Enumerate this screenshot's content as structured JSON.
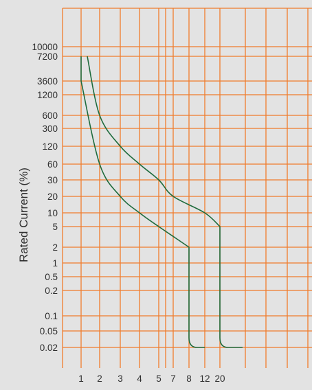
{
  "chart_data": {
    "type": "line",
    "title": "",
    "xlabel": "",
    "ylabel": "Rated Current (%)",
    "x_tick_labels": [
      "1",
      "2",
      "3",
      "4",
      "5",
      "7",
      "8",
      "12",
      "20"
    ],
    "y_tick_labels": [
      "10000",
      "7200",
      "3600",
      "1200",
      "600",
      "300",
      "120",
      "60",
      "30",
      "20",
      "10",
      "5",
      "2",
      "1",
      "0.5",
      "0.2",
      "0.1",
      "0.05",
      "0.02"
    ],
    "grid": true,
    "legend": "none",
    "series": [
      {
        "points": [
          [
            "1",
            "7200"
          ],
          [
            "1",
            "3600"
          ],
          [
            "2",
            "60"
          ],
          [
            "3",
            "20"
          ],
          [
            "4",
            "10"
          ],
          [
            "5",
            "5"
          ],
          [
            "8",
            "2"
          ],
          [
            "8",
            "0.02"
          ],
          [
            "12",
            "0.02"
          ]
        ]
      },
      {
        "points": [
          [
            "1",
            "7200"
          ],
          [
            "2",
            "600"
          ],
          [
            "3",
            "120"
          ],
          [
            "4",
            "60"
          ],
          [
            "5",
            "30"
          ],
          [
            "7",
            "20"
          ],
          [
            "12",
            "10"
          ],
          [
            "20",
            "5"
          ],
          [
            "20",
            "0.02"
          ],
          [
            "20",
            "0.02"
          ]
        ]
      }
    ]
  },
  "colors": {
    "background": "#e3e3e3",
    "grid": "#f07c2c",
    "curve": "#1e6b3c",
    "text": "#2f2f2f"
  }
}
